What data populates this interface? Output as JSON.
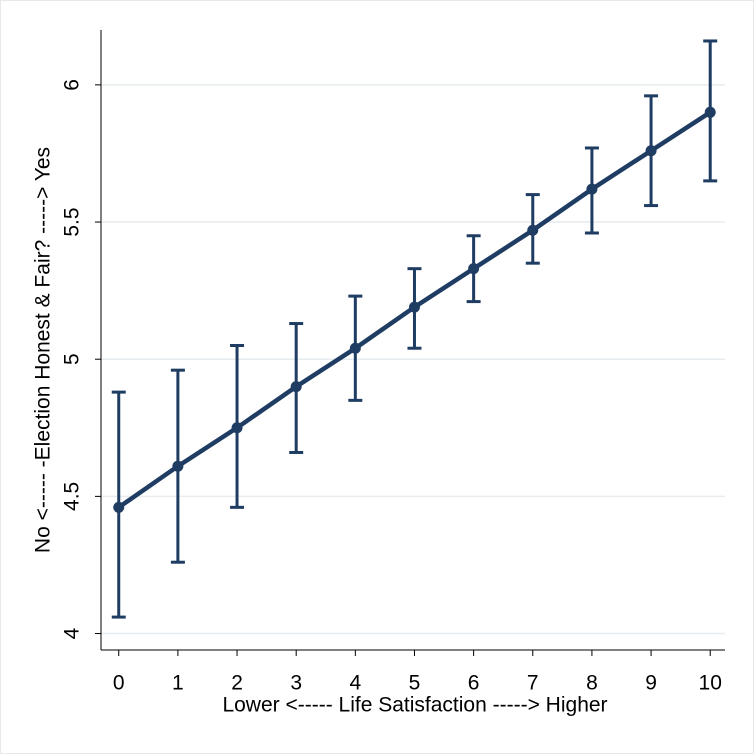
{
  "chart_data": {
    "type": "line",
    "x_label": "Lower <----- Life Satisfaction -----> Higher",
    "y_label": "No <----- -Election Honest & Fair? -----> Yes",
    "x": [
      0,
      1,
      2,
      3,
      4,
      5,
      6,
      7,
      8,
      9,
      10
    ],
    "series": [
      {
        "color": "#1f3d63",
        "values": [
          4.46,
          4.61,
          4.75,
          4.9,
          5.04,
          5.19,
          5.33,
          5.47,
          5.62,
          5.76,
          5.9
        ],
        "lower": [
          4.06,
          4.26,
          4.46,
          4.66,
          4.85,
          5.04,
          5.21,
          5.35,
          5.46,
          5.56,
          5.65
        ],
        "upper": [
          4.88,
          4.96,
          5.05,
          5.13,
          5.23,
          5.33,
          5.45,
          5.6,
          5.77,
          5.96,
          6.16
        ]
      }
    ],
    "xlim": [
      -0.3,
      10.25
    ],
    "ylim": [
      3.94,
      6.2
    ],
    "xticks": [
      0,
      1,
      2,
      3,
      4,
      5,
      6,
      7,
      8,
      9,
      10
    ],
    "yticks": [
      4,
      4.5,
      5,
      5.5,
      6
    ],
    "grid": true
  }
}
